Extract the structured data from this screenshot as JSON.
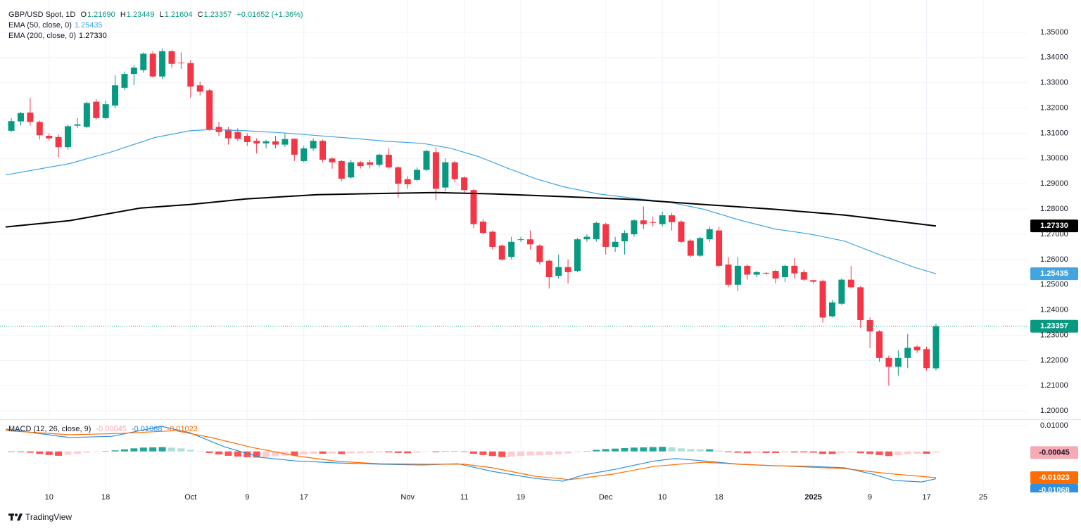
{
  "chart_data": [
    {
      "type": "candlestick",
      "title": "GBP/USD Spot, 1D",
      "ohlc_labels": [
        "O",
        "H",
        "L",
        "C"
      ],
      "ohlc_values": [
        "1.21690",
        "1.23449",
        "1.21604",
        "1.23357"
      ],
      "change": "+0.01652 (+1.36%)",
      "close_label": "1.23357",
      "up_color": "#089981",
      "down_color": "#f23645",
      "open": [
        1.311,
        1.3147,
        1.3182,
        1.3145,
        1.309,
        1.3085,
        1.3045,
        1.313,
        1.3125,
        1.3225,
        1.316,
        1.321,
        1.328,
        1.3335,
        1.335,
        1.3415,
        1.3325,
        1.3425,
        1.338,
        1.3378,
        1.329,
        1.327,
        1.3125,
        1.3115,
        1.3105,
        1.309,
        1.307,
        1.306,
        1.3068,
        1.3055,
        1.3078,
        1.299,
        1.304,
        1.307,
        1.3,
        1.299,
        1.2925,
        1.2985,
        1.2985,
        1.2975,
        1.3015,
        1.2965,
        1.2918,
        1.2915,
        1.2955,
        1.3025,
        1.2885,
        1.2985,
        1.2925,
        1.2875,
        1.275,
        1.271,
        1.2655,
        1.261,
        1.2678,
        1.268,
        1.2655,
        1.2595,
        1.2535,
        1.257,
        1.2555,
        1.268,
        1.268,
        1.274,
        1.265,
        1.2672,
        1.27,
        1.2755,
        1.2748,
        1.274,
        1.2775,
        1.275,
        1.2675,
        1.2615,
        1.268,
        1.2715,
        1.258,
        1.25,
        1.2575,
        1.254,
        1.2547,
        1.2555,
        1.253,
        1.2575,
        1.255,
        1.2518,
        1.2515,
        1.2375,
        1.2425,
        1.252,
        1.249,
        1.236,
        1.2315,
        1.221,
        1.2175,
        1.221,
        1.2255,
        1.2245,
        1.2169
      ],
      "high": [
        1.316,
        1.3185,
        1.324,
        1.315,
        1.31,
        1.3095,
        1.3135,
        1.316,
        1.3225,
        1.3235,
        1.323,
        1.333,
        1.3345,
        1.337,
        1.342,
        1.3425,
        1.3435,
        1.343,
        1.342,
        1.339,
        1.3305,
        1.3275,
        1.3145,
        1.3125,
        1.312,
        1.31,
        1.308,
        1.3075,
        1.309,
        1.31,
        1.308,
        1.305,
        1.308,
        1.3075,
        1.3005,
        1.2995,
        1.2995,
        1.299,
        1.2995,
        1.302,
        1.304,
        1.297,
        1.293,
        1.2965,
        1.3035,
        1.3045,
        1.3,
        1.299,
        1.293,
        1.288,
        1.276,
        1.2715,
        1.266,
        1.269,
        1.269,
        1.2715,
        1.266,
        1.26,
        1.262,
        1.26,
        1.2685,
        1.27,
        1.275,
        1.2745,
        1.269,
        1.2715,
        1.276,
        1.281,
        1.277,
        1.279,
        1.2785,
        1.2755,
        1.268,
        1.269,
        1.273,
        1.273,
        1.261,
        1.261,
        1.258,
        1.2555,
        1.255,
        1.256,
        1.258,
        1.2605,
        1.256,
        1.252,
        1.252,
        1.244,
        1.2525,
        1.2575,
        1.2495,
        1.237,
        1.232,
        1.222,
        1.224,
        1.2305,
        1.226,
        1.2255,
        1.23449
      ],
      "low": [
        1.3105,
        1.313,
        1.313,
        1.3075,
        1.307,
        1.3005,
        1.3035,
        1.312,
        1.312,
        1.3155,
        1.3155,
        1.32,
        1.327,
        1.329,
        1.334,
        1.332,
        1.3315,
        1.336,
        1.3355,
        1.324,
        1.325,
        1.311,
        1.309,
        1.3055,
        1.307,
        1.305,
        1.302,
        1.304,
        1.304,
        1.3045,
        1.299,
        1.2985,
        1.303,
        1.2985,
        1.296,
        1.291,
        1.292,
        1.296,
        1.296,
        1.2965,
        1.296,
        1.2845,
        1.288,
        1.291,
        1.295,
        1.2835,
        1.287,
        1.2905,
        1.286,
        1.2725,
        1.27,
        1.264,
        1.2595,
        1.26,
        1.267,
        1.264,
        1.258,
        1.2485,
        1.2525,
        1.2505,
        1.255,
        1.267,
        1.267,
        1.262,
        1.263,
        1.262,
        1.269,
        1.272,
        1.273,
        1.273,
        1.2715,
        1.2665,
        1.261,
        1.261,
        1.267,
        1.257,
        1.249,
        1.2475,
        1.252,
        1.253,
        1.254,
        1.2505,
        1.251,
        1.2525,
        1.2515,
        1.2505,
        1.235,
        1.237,
        1.242,
        1.2485,
        1.233,
        1.225,
        1.2195,
        1.21,
        1.214,
        1.217,
        1.223,
        1.216,
        1.21604
      ],
      "close": [
        1.3148,
        1.318,
        1.3145,
        1.3092,
        1.308,
        1.3045,
        1.3128,
        1.3135,
        1.322,
        1.316,
        1.3215,
        1.329,
        1.3335,
        1.336,
        1.3415,
        1.3325,
        1.3425,
        1.3375,
        1.3378,
        1.3285,
        1.3265,
        1.3115,
        1.3105,
        1.308,
        1.3078,
        1.3065,
        1.306,
        1.3068,
        1.3055,
        1.3077,
        1.3015,
        1.304,
        1.307,
        1.2995,
        1.2985,
        1.292,
        1.2985,
        1.297,
        1.2975,
        1.3015,
        1.2965,
        1.29,
        1.2898,
        1.2955,
        1.303,
        1.288,
        1.2985,
        1.2918,
        1.2875,
        1.274,
        1.2705,
        1.265,
        1.26,
        1.267,
        1.268,
        1.266,
        1.259,
        1.253,
        1.257,
        1.255,
        1.268,
        1.269,
        1.2745,
        1.265,
        1.267,
        1.2705,
        1.2755,
        1.274,
        1.2746,
        1.2775,
        1.2748,
        1.267,
        1.2615,
        1.2685,
        1.272,
        1.2575,
        1.25,
        1.2575,
        1.254,
        1.255,
        1.2545,
        1.2525,
        1.2575,
        1.2545,
        1.252,
        1.2512,
        1.237,
        1.243,
        1.252,
        1.249,
        1.236,
        1.2315,
        1.221,
        1.2175,
        1.221,
        1.225,
        1.224,
        1.217,
        1.23357
      ],
      "series": [
        {
          "name": "EMA (50, close, 0)",
          "color": "#42a5e0",
          "value_label": "1.25435",
          "label_text_color": "#ffffff",
          "x": [
            -0.6,
            6.2,
            10.7,
            15.2,
            18.9,
            21.2,
            24.9,
            28.6,
            32.4,
            36.1,
            39.8,
            43.6,
            46.5,
            49.5,
            52.5,
            55.5,
            58.5,
            62.2,
            65.9,
            69.7,
            73.4,
            77.1,
            80.9,
            84.6,
            88.3,
            92.1,
            95.8,
            98
          ],
          "values": [
            1.2935,
            1.298,
            1.3027,
            1.3083,
            1.311,
            1.3115,
            1.311,
            1.3102,
            1.3091,
            1.308,
            1.3068,
            1.306,
            1.3041,
            1.3008,
            1.2963,
            1.2921,
            1.2888,
            1.286,
            1.2843,
            1.2827,
            1.2799,
            1.2757,
            1.2721,
            1.2701,
            1.2673,
            1.2618,
            1.2568,
            1.25435
          ]
        },
        {
          "name": "EMA (200, close, 0)",
          "color": "#000000",
          "value_label": "1.27330",
          "label_text_color": "#ffffff",
          "x": [
            -0.6,
            6.2,
            13.7,
            18.9,
            24.9,
            32.4,
            39.8,
            45.0,
            51.0,
            58.5,
            65.9,
            73.4,
            80.9,
            88.3,
            98
          ],
          "values": [
            1.2729,
            1.2754,
            1.2804,
            1.2818,
            1.284,
            1.2857,
            1.2862,
            1.2865,
            1.286,
            1.2849,
            1.2838,
            1.2818,
            1.2799,
            1.2776,
            1.2733
          ]
        }
      ],
      "xlim": [
        -1.2,
        107.7
      ],
      "ylim": [
        1.197,
        1.36
      ],
      "yticks": [
        {
          "value": 1.2,
          "label": "1.20000"
        },
        {
          "value": 1.21,
          "label": "1.21000"
        },
        {
          "value": 1.22,
          "label": "1.22000"
        },
        {
          "value": 1.23,
          "label": "1.23000"
        },
        {
          "value": 1.24,
          "label": "1.24000"
        },
        {
          "value": 1.25,
          "label": "1.25000"
        },
        {
          "value": 1.26,
          "label": "1.26000"
        },
        {
          "value": 1.27,
          "label": "1.27000"
        },
        {
          "value": 1.28,
          "label": "1.28000"
        },
        {
          "value": 1.29,
          "label": "1.29000"
        },
        {
          "value": 1.3,
          "label": "1.30000"
        },
        {
          "value": 1.31,
          "label": "1.31000"
        },
        {
          "value": 1.32,
          "label": "1.32000"
        },
        {
          "value": 1.33,
          "label": "1.33000"
        },
        {
          "value": 1.34,
          "label": "1.34000"
        },
        {
          "value": 1.35,
          "label": "1.35000"
        }
      ],
      "xticks": [
        {
          "value": 4,
          "label": "10"
        },
        {
          "value": 10,
          "label": "18"
        },
        {
          "value": 19,
          "label": "Oct"
        },
        {
          "value": 25,
          "label": "9"
        },
        {
          "value": 31,
          "label": "17"
        },
        {
          "value": 42,
          "label": "Nov"
        },
        {
          "value": 48,
          "label": "11"
        },
        {
          "value": 54,
          "label": "19"
        },
        {
          "value": 63,
          "label": "Dec"
        },
        {
          "value": 69,
          "label": "10"
        },
        {
          "value": 75,
          "label": "18"
        },
        {
          "value": 85,
          "label": "2025"
        },
        {
          "value": 91,
          "label": "9"
        },
        {
          "value": 97,
          "label": "17"
        },
        {
          "value": 103,
          "label": "25"
        }
      ],
      "grid": true
    },
    {
      "type": "macd",
      "title": "MACD (12, 26, close, 9)",
      "histogram": {
        "values": [
          -0.0002,
          -0.0003,
          -0.0005,
          -0.001,
          -0.0014,
          -0.0017,
          -0.0013,
          -0.001,
          -0.0005,
          -0.0002,
          0.0001,
          0.0004,
          0.0008,
          0.0012,
          0.0015,
          0.0016,
          0.0017,
          0.0015,
          0.0012,
          0.0006,
          0.0001,
          -0.0006,
          -0.0012,
          -0.0017,
          -0.002,
          -0.0023,
          -0.0024,
          -0.0022,
          -0.0019,
          -0.0016,
          -0.0016,
          -0.0012,
          -0.0009,
          -0.0009,
          -0.0008,
          -0.001,
          -0.0008,
          -0.0007,
          -0.0006,
          -0.0004,
          -0.0004,
          -0.0006,
          -0.0007,
          -0.0005,
          -0.0001,
          -0.0003,
          0.0001,
          0.0001,
          -0.0002,
          -0.0009,
          -0.0014,
          -0.0018,
          -0.0022,
          -0.002,
          -0.0018,
          -0.0016,
          -0.0015,
          -0.0014,
          -0.0011,
          -0.0008,
          -0.0003,
          0.0001,
          0.0006,
          0.0009,
          0.0011,
          0.0013,
          0.0015,
          0.0016,
          0.0017,
          0.0018,
          0.0016,
          0.0012,
          0.0009,
          0.0008,
          0.0008,
          0.0003,
          -0.0003,
          -0.0005,
          -0.0007,
          -0.0006,
          -0.0006,
          -0.0006,
          -0.0004,
          -0.0004,
          -0.0004,
          -0.0005,
          -0.001,
          -0.001,
          -0.0006,
          -0.0004,
          -0.0007,
          -0.001,
          -0.0014,
          -0.0018,
          -0.0015,
          -0.0011,
          -0.0009,
          -0.0009,
          -0.00045
        ],
        "value_label": "-0.00045",
        "label_color": "#f7a9b4",
        "label_text_color": "#131722",
        "colors": {
          "rising_above": "#26a69a",
          "falling_above": "#b2dfdb",
          "falling_below": "#ff5252",
          "rising_below": "#ffcdd2"
        }
      },
      "series": [
        {
          "color": "#2f8fe0",
          "value_label": "-0.01068",
          "label_text_color": "#ffffff",
          "x": [
            -0.6,
            6.2,
            10.7,
            15.9,
            18.9,
            22.6,
            26.4,
            30.1,
            34.6,
            39.1,
            43.6,
            47.3,
            51.0,
            55.5,
            58.5,
            60.7,
            63.7,
            68.2,
            70.4,
            73.4,
            77.1,
            80.9,
            84.6,
            88.3,
            91.3,
            93.5,
            96.5,
            98
          ],
          "values": [
            0.0087,
            0.0054,
            0.0059,
            0.0098,
            0.0073,
            0.0018,
            -0.0023,
            -0.0037,
            -0.0045,
            -0.005,
            -0.0053,
            -0.0048,
            -0.0078,
            -0.0105,
            -0.0116,
            -0.0091,
            -0.0072,
            -0.0037,
            -0.0028,
            -0.0037,
            -0.005,
            -0.0056,
            -0.0058,
            -0.0064,
            -0.0089,
            -0.0113,
            -0.0119,
            -0.01068
          ]
        },
        {
          "color": "#ff6d00",
          "value_label": "-0.01023",
          "label_text_color": "#ffffff",
          "x": [
            -0.6,
            6.2,
            11.5,
            17.4,
            21.2,
            25.6,
            30.1,
            34.6,
            39.1,
            43.6,
            48.0,
            51.0,
            55.5,
            59.2,
            63.7,
            68.2,
            73.4,
            77.1,
            82.4,
            88.3,
            92.8,
            98
          ],
          "values": [
            0.0081,
            0.0065,
            0.007,
            0.0081,
            0.0054,
            0.0015,
            -0.0017,
            -0.0039,
            -0.0048,
            -0.005,
            -0.005,
            -0.0064,
            -0.0097,
            -0.011,
            -0.0089,
            -0.0058,
            -0.0042,
            -0.005,
            -0.0058,
            -0.0067,
            -0.0086,
            -0.01023
          ]
        }
      ],
      "ylim": [
        -0.016,
        0.012
      ],
      "yticks": [
        {
          "value": 0.01,
          "label": "0.01000"
        }
      ],
      "grid": true
    }
  ],
  "footer": "TradingView"
}
